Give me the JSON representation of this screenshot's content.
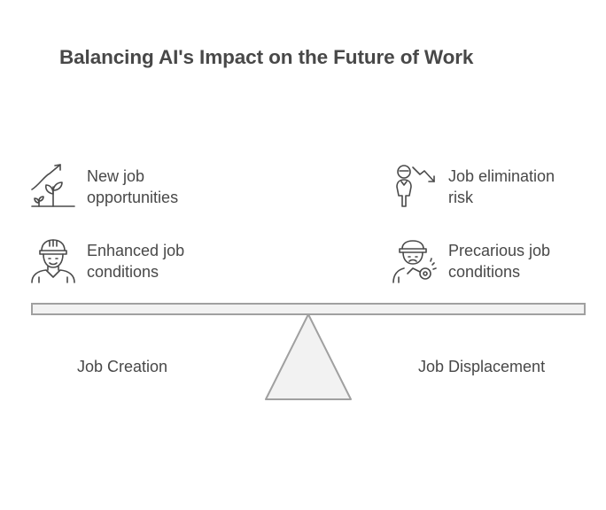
{
  "title": "Balancing AI's Impact on the Future of Work",
  "left": {
    "label": "Job Creation",
    "items": [
      {
        "line1": "New job",
        "line2": "opportunities",
        "icon": "growth-plant-icon"
      },
      {
        "line1": "Enhanced job",
        "line2": "conditions",
        "icon": "hard-hat-worker-icon"
      }
    ]
  },
  "right": {
    "label": "Job Displacement",
    "items": [
      {
        "line1": "Job elimination",
        "line2": "risk",
        "icon": "person-decline-icon"
      },
      {
        "line1": "Precarious job",
        "line2": "conditions",
        "icon": "worker-injury-icon"
      }
    ]
  },
  "colors": {
    "stroke": "#4a4a4a",
    "beam_fill": "#f2f2f2",
    "beam_stroke": "#a0a0a0",
    "text": "#484848"
  }
}
